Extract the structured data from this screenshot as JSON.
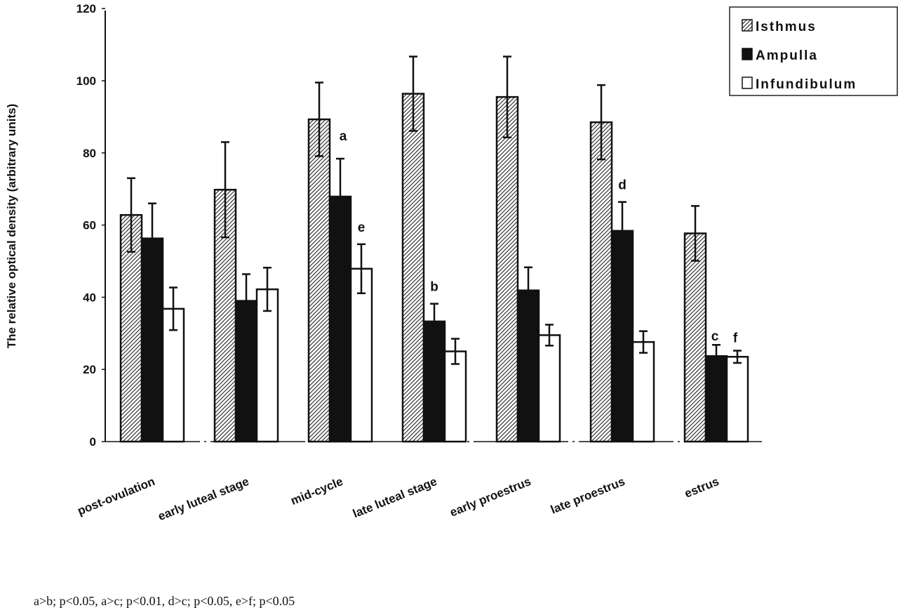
{
  "chart_data": {
    "type": "bar",
    "title": "",
    "xlabel": "",
    "ylabel": "The relative optical density (arbitrary units)",
    "ylim": [
      0,
      120
    ],
    "yticks": [
      "0",
      "20",
      "40",
      "60",
      "80",
      "100",
      "120"
    ],
    "grid": false,
    "legend_position": "top-right",
    "categories": [
      "post-ovulation",
      "early luteal stage",
      "mid-cycle",
      "late luteal stage",
      "early proestrus",
      "late proestrus",
      "estrus"
    ],
    "series": [
      {
        "name": "Isthmus",
        "pattern": "hatched",
        "values": [
          62.8,
          69.8,
          89.3,
          96.4,
          95.5,
          88.5,
          57.7
        ],
        "error_upper": [
          73,
          83,
          99.5,
          106.7,
          106.7,
          98.8,
          65.3
        ]
      },
      {
        "name": "Ampulla",
        "pattern": "solid",
        "color": "#111111",
        "values": [
          56.3,
          39,
          67.9,
          33.3,
          41.9,
          58.4,
          23.7
        ],
        "error_upper": [
          66,
          46.4,
          78.4,
          38.2,
          48.3,
          66.4,
          26.8
        ]
      },
      {
        "name": "Infundibulum",
        "pattern": "open",
        "color": "#ffffff",
        "values": [
          36.8,
          42.2,
          47.9,
          25,
          29.5,
          27.6,
          23.5
        ],
        "error_upper": [
          42.7,
          48.2,
          54.7,
          28.5,
          32.4,
          30.6,
          25.2
        ]
      }
    ],
    "annotations": [
      {
        "text": "a",
        "category": "mid-cycle",
        "series": "Ampulla"
      },
      {
        "text": "e",
        "category": "mid-cycle",
        "series": "Infundibulum"
      },
      {
        "text": "b",
        "category": "late luteal stage",
        "series": "Ampulla"
      },
      {
        "text": "d",
        "category": "late proestrus",
        "series": "Ampulla"
      },
      {
        "text": "c",
        "category": "estrus",
        "series": "Ampulla"
      },
      {
        "text": "f",
        "category": "estrus",
        "series": "Infundibulum"
      }
    ],
    "footnote": "a>b; p<0.05, a>c; p<0.01, d>c; p<0.05, e>f; p<0.05"
  }
}
